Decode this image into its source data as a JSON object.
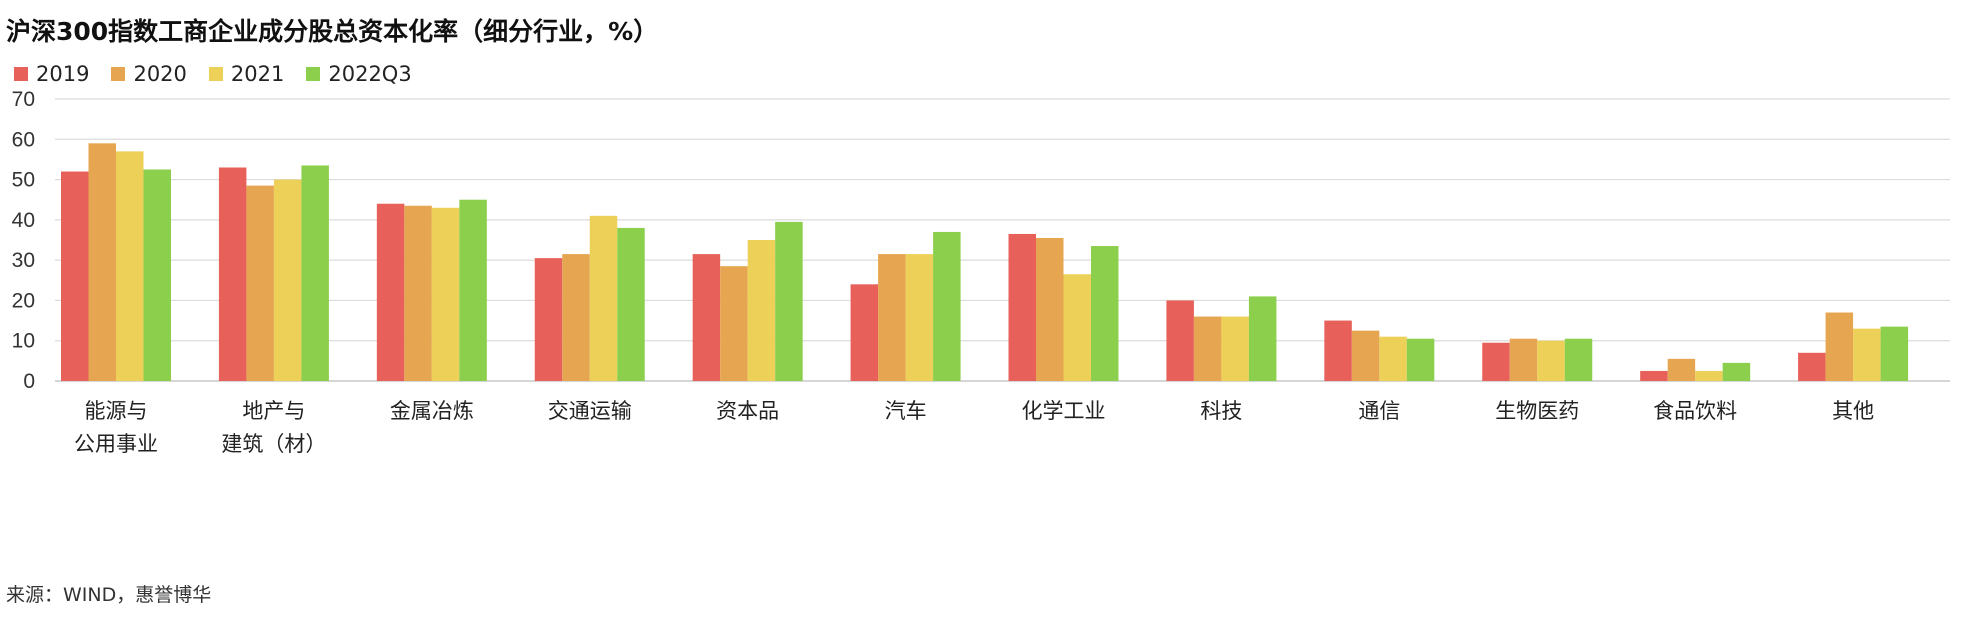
{
  "title": "沪深300指数工商企业成分股总资本化率（细分行业，%）",
  "source": "来源：WIND，惠誉博华",
  "chart_data": {
    "type": "bar",
    "title": "沪深300指数工商企业成分股总资本化率（细分行业，%）",
    "xlabel": "",
    "ylabel": "",
    "ylim": [
      0,
      70
    ],
    "yticks": [
      0,
      10,
      20,
      30,
      40,
      50,
      60,
      70
    ],
    "grid": true,
    "legend_position": "top-left",
    "categories": [
      [
        "能源与",
        "公用事业"
      ],
      [
        "地产与",
        "建筑（材）"
      ],
      [
        "金属冶炼"
      ],
      [
        "交通运输"
      ],
      [
        "资本品"
      ],
      [
        "汽车"
      ],
      [
        "化学工业"
      ],
      [
        "科技"
      ],
      [
        "通信"
      ],
      [
        "生物医药"
      ],
      [
        "食品饮料"
      ],
      [
        "其他"
      ]
    ],
    "series": [
      {
        "name": "2019",
        "color": "#e8605a",
        "values": [
          52,
          53,
          44,
          30.5,
          31.5,
          24,
          36.5,
          20,
          15,
          9.5,
          2.5,
          7
        ]
      },
      {
        "name": "2020",
        "color": "#e6a550",
        "values": [
          59,
          48.5,
          43.5,
          31.5,
          28.5,
          31.5,
          35.5,
          16,
          12.5,
          10.5,
          5.5,
          17
        ]
      },
      {
        "name": "2021",
        "color": "#ecd057",
        "values": [
          57,
          50,
          43,
          41,
          35,
          31.5,
          26.5,
          16,
          11,
          10,
          2.5,
          13
        ]
      },
      {
        "name": "2022Q3",
        "color": "#8ccf4d",
        "values": [
          52.5,
          53.5,
          45,
          38,
          39.5,
          37,
          33.5,
          21,
          10.5,
          10.5,
          4.5,
          13.5
        ]
      }
    ]
  }
}
